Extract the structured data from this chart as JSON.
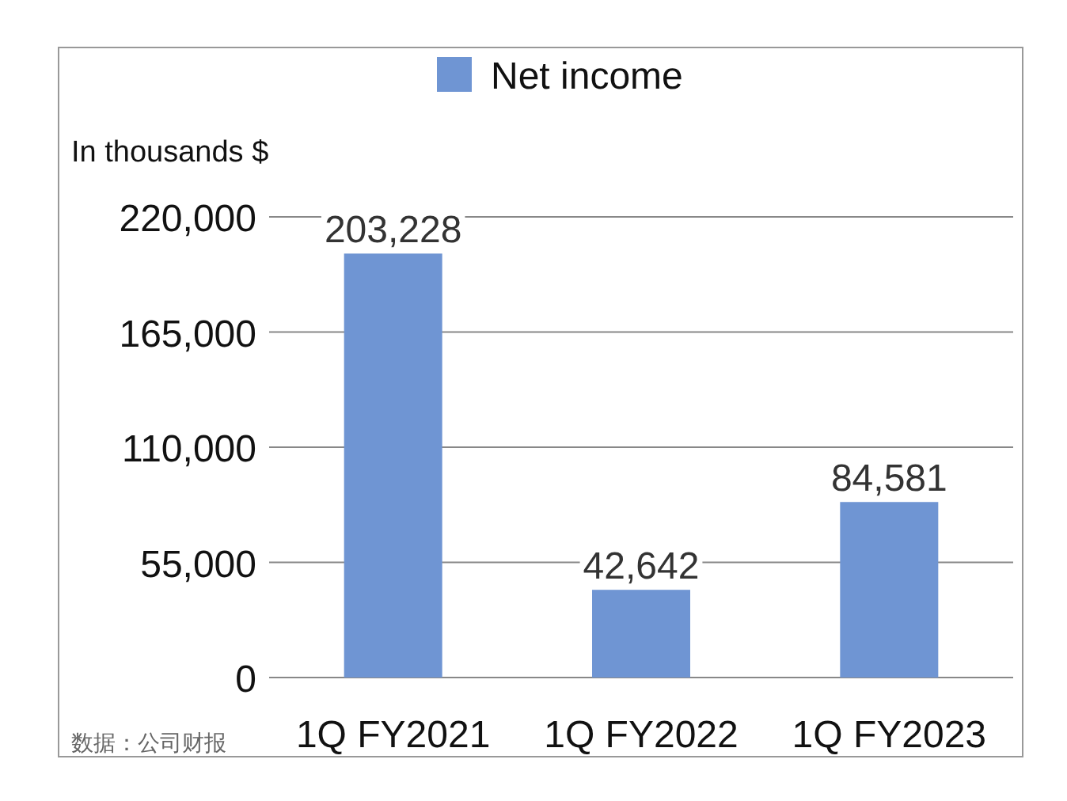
{
  "chart_data": {
    "type": "bar",
    "ylabel": "In thousands $",
    "categories": [
      "1Q FY2021",
      "1Q FY2022",
      "1Q FY2023"
    ],
    "series": [
      {
        "name": "Net income",
        "color": "#6f95d3",
        "values": [
          203228,
          42642,
          84581
        ],
        "value_labels": [
          "203,228",
          "42,642",
          "84,581"
        ]
      }
    ],
    "ylim": [
      0,
      220000
    ],
    "yticks": [
      {
        "value": 0,
        "label": "0"
      },
      {
        "value": 55000,
        "label": "55,000"
      },
      {
        "value": 110000,
        "label": "110,000"
      },
      {
        "value": 165000,
        "label": "165,000"
      },
      {
        "value": 220000,
        "label": "220,000"
      }
    ],
    "grid": "y",
    "legend": "top",
    "annotations": [
      "数据：公司财报"
    ]
  }
}
